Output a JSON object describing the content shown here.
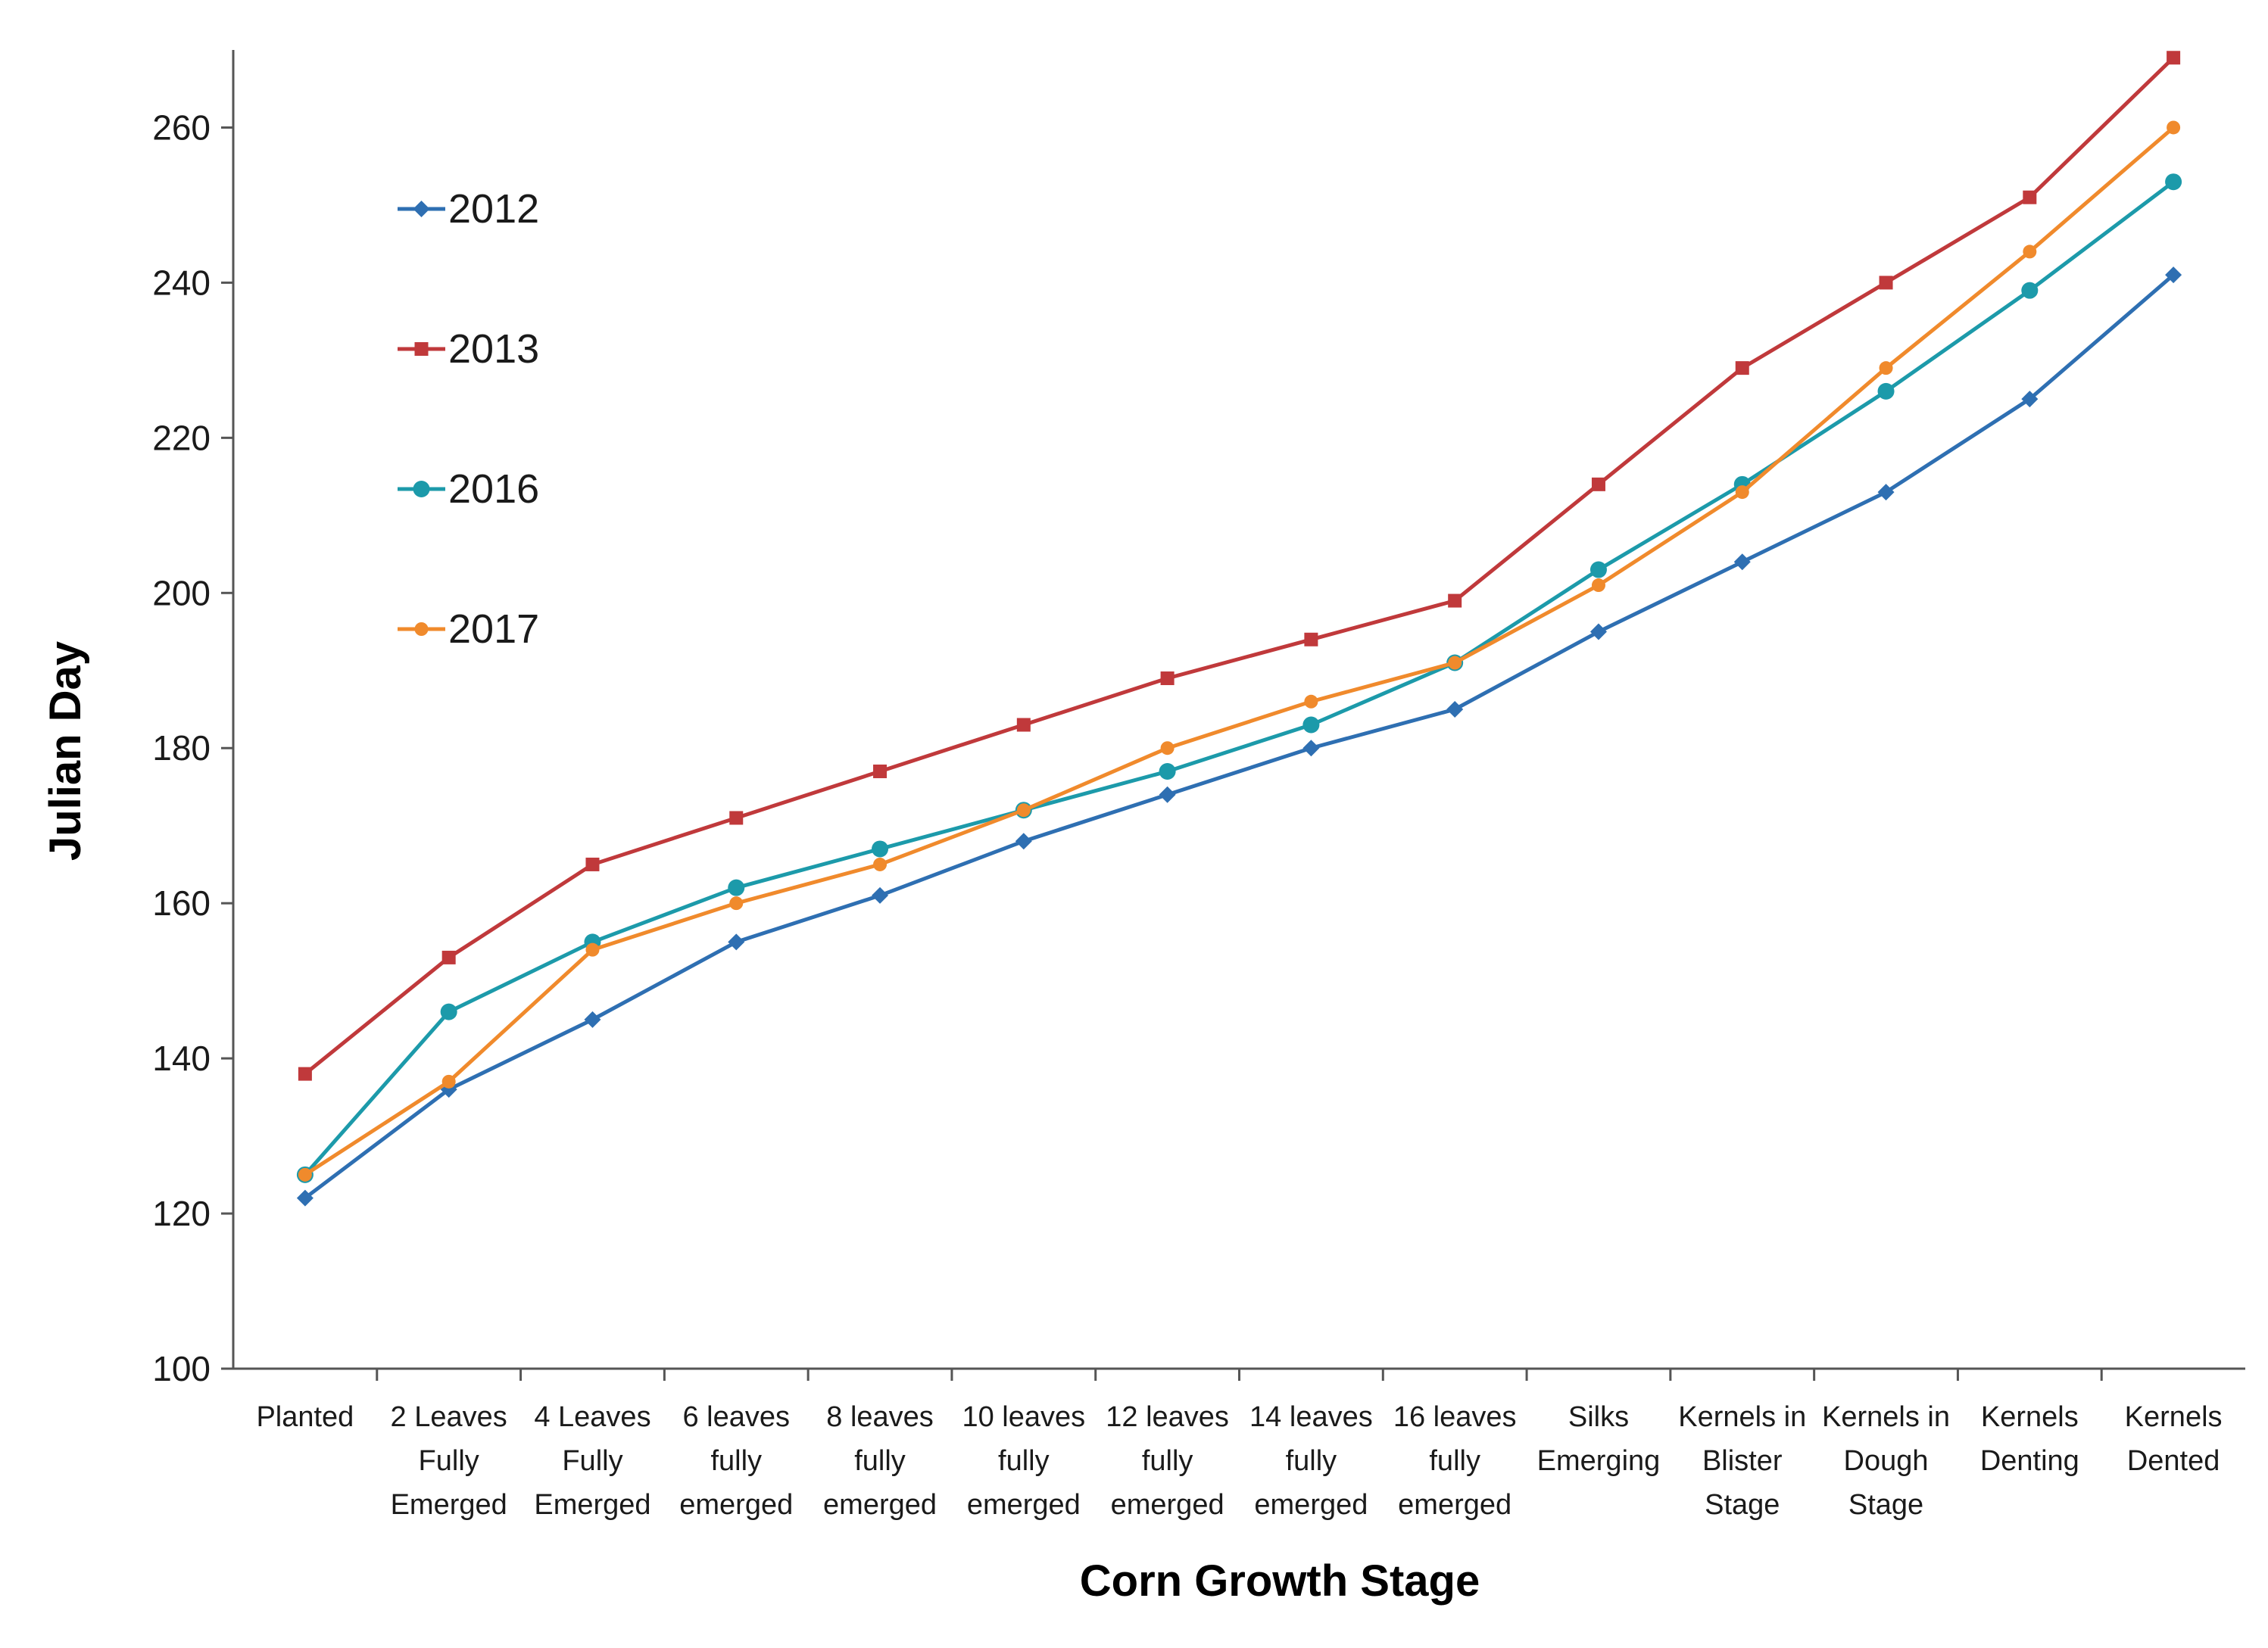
{
  "chart_data": {
    "type": "line",
    "title": "",
    "xlabel": "Corn Growth Stage",
    "ylabel": "Julian Day",
    "ylim": [
      100,
      270
    ],
    "yticks": [
      100,
      120,
      140,
      160,
      180,
      200,
      220,
      240,
      260
    ],
    "grid": false,
    "legend_position": "top-left",
    "categories": [
      [
        "Planted"
      ],
      [
        "2 Leaves",
        "Fully",
        "Emerged"
      ],
      [
        "4 Leaves",
        "Fully",
        "Emerged"
      ],
      [
        "6 leaves",
        "fully",
        "emerged"
      ],
      [
        "8 leaves",
        "fully",
        "emerged"
      ],
      [
        "10 leaves",
        "fully",
        "emerged"
      ],
      [
        "12 leaves",
        "fully",
        "emerged"
      ],
      [
        "14 leaves",
        "fully",
        "emerged"
      ],
      [
        "16 leaves",
        "fully",
        "emerged"
      ],
      [
        "Silks",
        "Emerging"
      ],
      [
        "Kernels in",
        "Blister",
        "Stage"
      ],
      [
        "Kernels in",
        "Dough",
        "Stage"
      ],
      [
        "Kernels",
        "Denting"
      ],
      [
        "Kernels",
        "Dented"
      ]
    ],
    "series": [
      {
        "name": "2012",
        "color": "#2e6fb2",
        "marker": "diamond",
        "values": [
          122,
          136,
          145,
          155,
          161,
          168,
          174,
          180,
          185,
          195,
          204,
          213,
          225,
          241
        ]
      },
      {
        "name": "2013",
        "color": "#c0393b",
        "marker": "square",
        "values": [
          138,
          153,
          165,
          171,
          177,
          183,
          189,
          194,
          199,
          214,
          229,
          240,
          251,
          269
        ]
      },
      {
        "name": "2016",
        "color": "#1c9aaa",
        "marker": "circle",
        "values": [
          125,
          146,
          155,
          162,
          167,
          172,
          177,
          183,
          191,
          203,
          214,
          226,
          239,
          253
        ]
      },
      {
        "name": "2017",
        "color": "#f08a2c",
        "marker": "circle-small",
        "values": [
          125,
          137,
          154,
          160,
          165,
          172,
          180,
          186,
          191,
          201,
          213,
          229,
          244,
          260
        ]
      }
    ]
  }
}
